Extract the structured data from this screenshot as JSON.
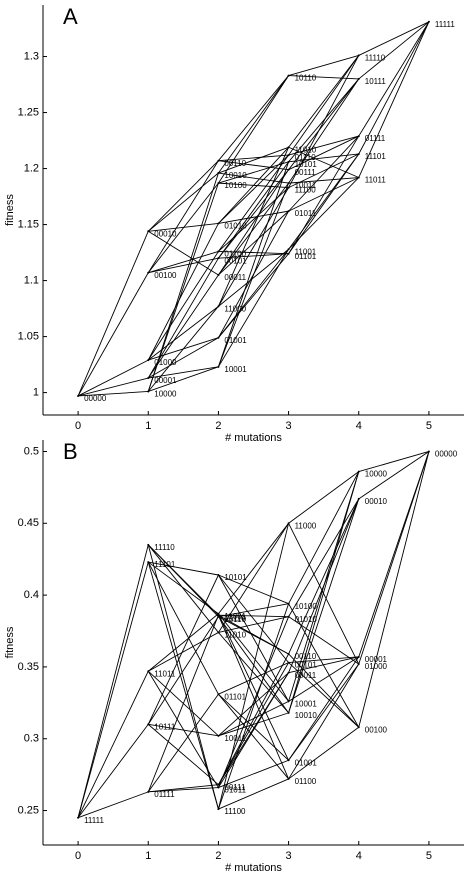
{
  "chart_data": [
    {
      "type": "scatter",
      "panel": "A",
      "x_label": "# mutations",
      "y_label": "fitness",
      "xlim": [
        -0.5,
        5.5
      ],
      "ylim": [
        0.98,
        1.346
      ],
      "xticks": [
        0,
        1,
        2,
        3,
        4,
        5
      ],
      "yticks": [
        1,
        1.05,
        1.1,
        1.15,
        1.2,
        1.25,
        1.3
      ],
      "color": "#000000",
      "labels": [
        "00000",
        "00010",
        "00100",
        "01000",
        "00001",
        "10000",
        "00110",
        "10010",
        "10100",
        "01010",
        "01100",
        "00101",
        "00011",
        "11000",
        "01001",
        "10001",
        "10110",
        "11010",
        "01110",
        "10101",
        "00111",
        "10011",
        "11100",
        "01011",
        "11001",
        "01101",
        "11110",
        "10111",
        "01111",
        "11101",
        "11011",
        "11111"
      ],
      "x": [
        0,
        1,
        1,
        1,
        1,
        1,
        2,
        2,
        2,
        2,
        2,
        2,
        2,
        2,
        2,
        2,
        3,
        3,
        3,
        3,
        3,
        3,
        3,
        3,
        3,
        3,
        4,
        4,
        4,
        4,
        4,
        5
      ],
      "y": [
        0.997,
        1.144,
        1.107,
        1.029,
        1.013,
        1.001,
        1.207,
        1.196,
        1.187,
        1.151,
        1.126,
        1.12,
        1.105,
        1.077,
        1.049,
        1.023,
        1.283,
        1.219,
        1.212,
        1.206,
        1.199,
        1.187,
        1.183,
        1.162,
        1.128,
        1.124,
        1.301,
        1.28,
        1.229,
        1.213,
        1.192,
        1.331
      ]
    },
    {
      "type": "scatter",
      "panel": "B",
      "x_label": "# mutations",
      "y_label": "fitness",
      "xlim": [
        -0.5,
        5.5
      ],
      "ylim": [
        0.226,
        0.508
      ],
      "xticks": [
        0,
        1,
        2,
        3,
        4,
        5
      ],
      "yticks": [
        0.25,
        0.3,
        0.35,
        0.4,
        0.45,
        0.5
      ],
      "color": "#000000",
      "labels": [
        "11111",
        "11110",
        "11101",
        "11011",
        "10111",
        "01111",
        "10101",
        "11001",
        "01110",
        "10110",
        "11010",
        "01101",
        "10011",
        "00111",
        "01011",
        "11100",
        "11000",
        "10100",
        "01010",
        "00110",
        "00101",
        "00011",
        "10001",
        "10010",
        "01001",
        "01100",
        "10000",
        "00010",
        "00001",
        "01000",
        "00100",
        "00000"
      ],
      "x": [
        0,
        1,
        1,
        1,
        1,
        1,
        2,
        2,
        2,
        2,
        2,
        2,
        2,
        2,
        2,
        2,
        3,
        3,
        3,
        3,
        3,
        3,
        3,
        3,
        3,
        3,
        4,
        4,
        4,
        4,
        4,
        5
      ],
      "y": [
        0.245,
        0.435,
        0.423,
        0.347,
        0.31,
        0.263,
        0.414,
        0.387,
        0.386,
        0.385,
        0.374,
        0.331,
        0.302,
        0.268,
        0.266,
        0.251,
        0.45,
        0.394,
        0.385,
        0.359,
        0.353,
        0.346,
        0.326,
        0.318,
        0.285,
        0.272,
        0.486,
        0.467,
        0.357,
        0.352,
        0.308,
        0.5
      ]
    }
  ]
}
